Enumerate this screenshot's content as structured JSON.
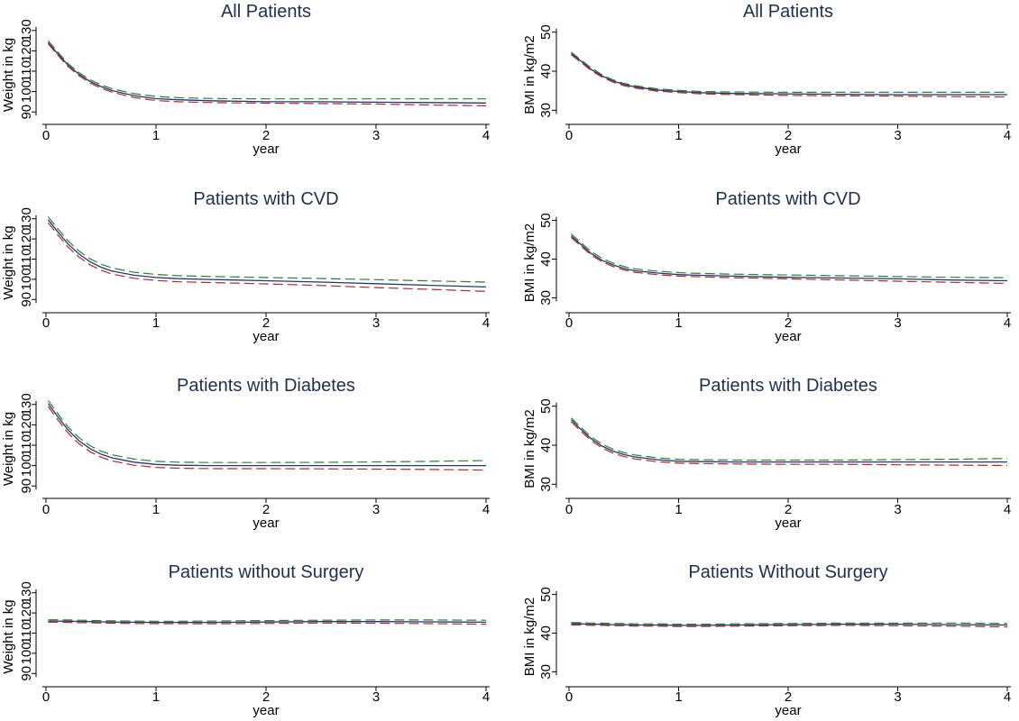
{
  "colors": {
    "fit": "#1f3a6b",
    "ci_upper": "#2e7d32",
    "ci_lower": "#b5282a",
    "title": "#1e2f4f",
    "axis": "#000000"
  },
  "chart_data": [
    {
      "type": "line",
      "title": "All Patients",
      "xlabel": "year",
      "ylabel": "Weight in kg",
      "xlim": [
        0,
        4
      ],
      "ylim": [
        87,
        133
      ],
      "xticks": [
        "0",
        "1",
        "2",
        "3",
        "4"
      ],
      "yticks": [
        "90",
        "100",
        "110",
        "120",
        "130"
      ],
      "grid": false,
      "x": [
        0.02,
        0.1,
        0.2,
        0.3,
        0.4,
        0.5,
        0.6,
        0.8,
        1.0,
        1.2,
        1.5,
        2.0,
        2.5,
        3.0,
        3.5,
        4.0
      ],
      "series": [
        {
          "role": "fit",
          "style": "solid",
          "values": [
            124,
            119,
            113,
            108.5,
            105,
            102.5,
            100.5,
            98,
            96.5,
            96,
            95.5,
            95,
            95,
            94.8,
            94.6,
            94.4
          ]
        },
        {
          "role": "upper",
          "style": "dashed",
          "values": [
            125,
            119.8,
            113.8,
            109.3,
            105.8,
            103.3,
            101.4,
            99,
            97.6,
            97,
            96.6,
            96.4,
            96.4,
            96.4,
            96.4,
            96.4
          ]
        },
        {
          "role": "lower",
          "style": "dashed",
          "values": [
            123.5,
            118.3,
            112.3,
            107.8,
            104.2,
            101.7,
            99.7,
            97.1,
            95.6,
            95,
            94.6,
            94.3,
            94.1,
            93.9,
            93.4,
            93
          ]
        }
      ]
    },
    {
      "type": "line",
      "title": "All Patients",
      "xlabel": "year",
      "ylabel": "BMI in kg/m2",
      "xlim": [
        0,
        4
      ],
      "ylim": [
        28,
        52
      ],
      "xticks": [
        "0",
        "1",
        "2",
        "3",
        "4"
      ],
      "yticks": [
        "30",
        "40",
        "50"
      ],
      "grid": false,
      "x": [
        0.02,
        0.1,
        0.2,
        0.3,
        0.4,
        0.5,
        0.6,
        0.8,
        1.0,
        1.2,
        1.5,
        2.0,
        2.5,
        3.0,
        3.5,
        4.0
      ],
      "series": [
        {
          "role": "fit",
          "style": "solid",
          "values": [
            44.5,
            42.8,
            40.5,
            38.8,
            37.5,
            36.6,
            36,
            35.2,
            34.8,
            34.5,
            34.3,
            34.2,
            34.1,
            34,
            34,
            34
          ]
        },
        {
          "role": "upper",
          "style": "dashed",
          "values": [
            44.9,
            43.1,
            40.9,
            39.1,
            37.8,
            36.9,
            36.3,
            35.5,
            35.1,
            34.8,
            34.7,
            34.6,
            34.6,
            34.6,
            34.6,
            34.6
          ]
        },
        {
          "role": "lower",
          "style": "dashed",
          "values": [
            44.2,
            42.5,
            40.2,
            38.5,
            37.2,
            36.3,
            35.7,
            34.9,
            34.5,
            34.2,
            34,
            33.8,
            33.7,
            33.6,
            33.5,
            33.4
          ]
        }
      ]
    },
    {
      "type": "line",
      "title": "Patients with CVD",
      "xlabel": "year",
      "ylabel": "Weight in kg",
      "xlim": [
        0,
        4
      ],
      "ylim": [
        87,
        133
      ],
      "xticks": [
        "0",
        "1",
        "2",
        "3",
        "4"
      ],
      "yticks": [
        "90",
        "100",
        "110",
        "120",
        "130"
      ],
      "grid": false,
      "x": [
        0.02,
        0.1,
        0.2,
        0.3,
        0.4,
        0.5,
        0.6,
        0.8,
        1.0,
        1.2,
        1.5,
        2.0,
        2.5,
        3.0,
        3.5,
        4.0
      ],
      "series": [
        {
          "role": "fit",
          "style": "solid",
          "values": [
            129.5,
            124,
            117.5,
            112.5,
            108.7,
            106,
            104.1,
            102,
            100.9,
            100.3,
            99.9,
            99.3,
            98.6,
            97.8,
            97,
            96.2
          ]
        },
        {
          "role": "upper",
          "style": "dashed",
          "values": [
            131,
            125.5,
            119,
            114,
            110.2,
            107.5,
            105.6,
            103.5,
            102.4,
            101.8,
            101.4,
            100.9,
            100.4,
            99.8,
            99.2,
            98.6
          ]
        },
        {
          "role": "lower",
          "style": "dashed",
          "values": [
            128,
            122.5,
            116,
            111,
            107.2,
            104.5,
            102.6,
            100.5,
            99.4,
            98.8,
            98.4,
            97.7,
            96.9,
            95.9,
            95,
            94
          ]
        }
      ]
    },
    {
      "type": "line",
      "title": "Patients with CVD",
      "xlabel": "year",
      "ylabel": "BMI in kg/m2",
      "xlim": [
        0,
        4
      ],
      "ylim": [
        28,
        52
      ],
      "xticks": [
        "0",
        "1",
        "2",
        "3",
        "4"
      ],
      "yticks": [
        "30",
        "40",
        "50"
      ],
      "grid": false,
      "x": [
        0.02,
        0.1,
        0.2,
        0.3,
        0.4,
        0.5,
        0.6,
        0.8,
        1.0,
        1.2,
        1.5,
        2.0,
        2.5,
        3.0,
        3.5,
        4.0
      ],
      "series": [
        {
          "role": "fit",
          "style": "solid",
          "values": [
            46,
            44,
            41.5,
            39.7,
            38.5,
            37.6,
            37,
            36.4,
            36,
            35.8,
            35.6,
            35.3,
            35.1,
            34.9,
            34.6,
            34.4
          ]
        },
        {
          "role": "upper",
          "style": "dashed",
          "values": [
            46.5,
            44.5,
            42,
            40.2,
            39,
            38.1,
            37.5,
            36.9,
            36.5,
            36.3,
            36.1,
            35.9,
            35.7,
            35.5,
            35.3,
            35.2
          ]
        },
        {
          "role": "lower",
          "style": "dashed",
          "values": [
            45.6,
            43.6,
            41.1,
            39.3,
            38.1,
            37.2,
            36.6,
            36,
            35.6,
            35.4,
            35.2,
            34.9,
            34.6,
            34.3,
            34,
            33.7
          ]
        }
      ]
    },
    {
      "type": "line",
      "title": "Patients with Diabetes",
      "xlabel": "year",
      "ylabel": "Weight in kg",
      "xlim": [
        0,
        4
      ],
      "ylim": [
        87,
        133
      ],
      "xticks": [
        "0",
        "1",
        "2",
        "3",
        "4"
      ],
      "yticks": [
        "90",
        "100",
        "110",
        "120",
        "130"
      ],
      "grid": false,
      "x": [
        0.02,
        0.1,
        0.2,
        0.3,
        0.4,
        0.5,
        0.6,
        0.8,
        1.0,
        1.2,
        1.5,
        2.0,
        2.5,
        3.0,
        3.5,
        4.0
      ],
      "series": [
        {
          "role": "fit",
          "style": "solid",
          "values": [
            130.5,
            124.5,
            117.5,
            112.2,
            108.3,
            105.6,
            103.8,
            101.7,
            100.6,
            100.2,
            100,
            100,
            100,
            100,
            100,
            100
          ]
        },
        {
          "role": "upper",
          "style": "dashed",
          "values": [
            132,
            126,
            119,
            113.7,
            109.8,
            107.1,
            105.3,
            103.2,
            102.1,
            101.7,
            101.5,
            101.5,
            101.6,
            101.8,
            102.1,
            102.5
          ]
        },
        {
          "role": "lower",
          "style": "dashed",
          "values": [
            129,
            123,
            116,
            110.7,
            106.8,
            104.1,
            102.3,
            100.2,
            99.1,
            98.7,
            98.5,
            98.5,
            98.4,
            98.3,
            98.1,
            97.8
          ]
        }
      ]
    },
    {
      "type": "line",
      "title": "Patients with Diabetes",
      "xlabel": "year",
      "ylabel": "BMI in kg/m2",
      "xlim": [
        0,
        4
      ],
      "ylim": [
        28,
        52
      ],
      "xticks": [
        "0",
        "1",
        "2",
        "3",
        "4"
      ],
      "yticks": [
        "30",
        "40",
        "50"
      ],
      "grid": false,
      "x": [
        0.02,
        0.1,
        0.2,
        0.3,
        0.4,
        0.5,
        0.6,
        0.8,
        1.0,
        1.2,
        1.5,
        2.0,
        2.5,
        3.0,
        3.5,
        4.0
      ],
      "series": [
        {
          "role": "fit",
          "style": "solid",
          "values": [
            46.5,
            44.3,
            41.7,
            39.8,
            38.5,
            37.6,
            37,
            36.3,
            35.9,
            35.8,
            35.7,
            35.7,
            35.7,
            35.7,
            35.7,
            35.7
          ]
        },
        {
          "role": "upper",
          "style": "dashed",
          "values": [
            47,
            44.8,
            42.2,
            40.3,
            39,
            38.1,
            37.5,
            36.8,
            36.4,
            36.3,
            36.2,
            36.2,
            36.2,
            36.3,
            36.4,
            36.6
          ]
        },
        {
          "role": "lower",
          "style": "dashed",
          "values": [
            46,
            43.8,
            41.2,
            39.3,
            38,
            37.1,
            36.5,
            35.8,
            35.4,
            35.3,
            35.2,
            35.1,
            35.1,
            35,
            34.9,
            34.8
          ]
        }
      ]
    },
    {
      "type": "line",
      "title": "Patients without Surgery",
      "xlabel": "year",
      "ylabel": "Weight in kg",
      "xlim": [
        0,
        4
      ],
      "ylim": [
        87,
        133
      ],
      "xticks": [
        "0",
        "1",
        "2",
        "3",
        "4"
      ],
      "yticks": [
        "90",
        "100",
        "110",
        "120",
        "130"
      ],
      "grid": false,
      "x": [
        0.02,
        0.1,
        0.2,
        0.3,
        0.4,
        0.5,
        0.6,
        0.8,
        1.0,
        1.2,
        1.5,
        2.0,
        2.5,
        3.0,
        3.5,
        4.0
      ],
      "series": [
        {
          "role": "fit",
          "style": "solid",
          "values": [
            116,
            116,
            115.9,
            115.8,
            115.7,
            115.6,
            115.5,
            115.4,
            115.3,
            115.3,
            115.3,
            115.5,
            115.7,
            115.7,
            115.6,
            115.4
          ]
        },
        {
          "role": "upper",
          "style": "dashed",
          "values": [
            116.6,
            116.6,
            116.5,
            116.4,
            116.3,
            116.2,
            116.1,
            116,
            115.9,
            115.9,
            116,
            116.2,
            116.4,
            116.5,
            116.5,
            116.4
          ]
        },
        {
          "role": "lower",
          "style": "dashed",
          "values": [
            115.4,
            115.4,
            115.3,
            115.2,
            115.1,
            115,
            114.9,
            114.8,
            114.7,
            114.7,
            114.6,
            114.8,
            115,
            114.9,
            114.7,
            114.4
          ]
        }
      ]
    },
    {
      "type": "line",
      "title": "Patients Without Surgery",
      "xlabel": "year",
      "ylabel": "BMI in kg/m2",
      "xlim": [
        0,
        4
      ],
      "ylim": [
        28,
        52
      ],
      "xticks": [
        "0",
        "1",
        "2",
        "3",
        "4"
      ],
      "yticks": [
        "30",
        "40",
        "50"
      ],
      "grid": false,
      "x": [
        0.02,
        0.1,
        0.2,
        0.3,
        0.4,
        0.5,
        0.6,
        0.8,
        1.0,
        1.2,
        1.5,
        2.0,
        2.5,
        3.0,
        3.5,
        4.0
      ],
      "series": [
        {
          "role": "fit",
          "style": "solid",
          "values": [
            42.4,
            42.4,
            42.3,
            42.3,
            42.2,
            42.2,
            42.1,
            42.1,
            42,
            42,
            42.1,
            42.2,
            42.3,
            42.3,
            42.2,
            42.1
          ]
        },
        {
          "role": "upper",
          "style": "dashed",
          "values": [
            42.7,
            42.7,
            42.6,
            42.6,
            42.5,
            42.5,
            42.4,
            42.4,
            42.3,
            42.3,
            42.4,
            42.5,
            42.6,
            42.6,
            42.6,
            42.5
          ]
        },
        {
          "role": "lower",
          "style": "dashed",
          "values": [
            42.1,
            42.1,
            42,
            42,
            41.9,
            41.9,
            41.8,
            41.8,
            41.7,
            41.7,
            41.8,
            41.9,
            42,
            41.9,
            41.8,
            41.6
          ]
        }
      ]
    }
  ]
}
